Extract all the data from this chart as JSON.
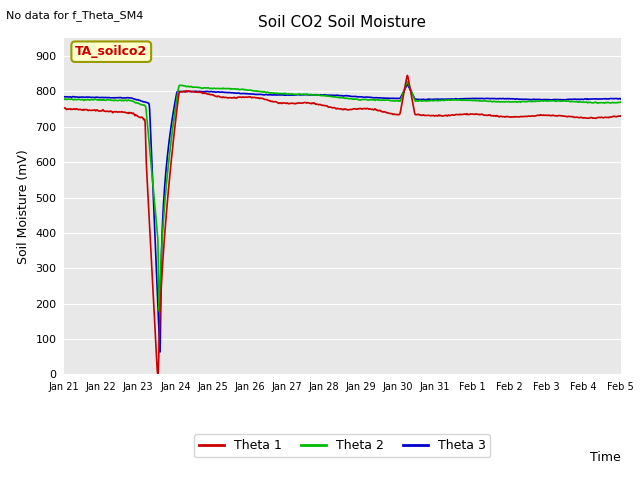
{
  "title": "Soil CO2 Soil Moisture",
  "no_data_text": "No data for f_Theta_SM4",
  "annotation_text": "TA_soilco2",
  "xlabel": "Time",
  "ylabel": "Soil Moisture (mV)",
  "ylim": [
    0,
    950
  ],
  "yticks": [
    0,
    100,
    200,
    300,
    400,
    500,
    600,
    700,
    800,
    900
  ],
  "fig_bg_color": "#ffffff",
  "plot_bg_color": "#e8e8e8",
  "colors": {
    "theta1": "#cc0000",
    "theta2": "#00bb00",
    "theta3": "#0000cc"
  },
  "legend_labels": [
    "Theta 1",
    "Theta 2",
    "Theta 3"
  ],
  "x_tick_labels": [
    "Jan 21",
    "Jan 22",
    "Jan 23",
    "Jan 24",
    "Jan 25",
    "Jan 26",
    "Jan 27",
    "Jan 28",
    "Jan 29",
    "Jan 30",
    "Jan 31",
    "Feb 1",
    "Feb 2",
    "Feb 3",
    "Feb 4",
    "Feb 5"
  ]
}
